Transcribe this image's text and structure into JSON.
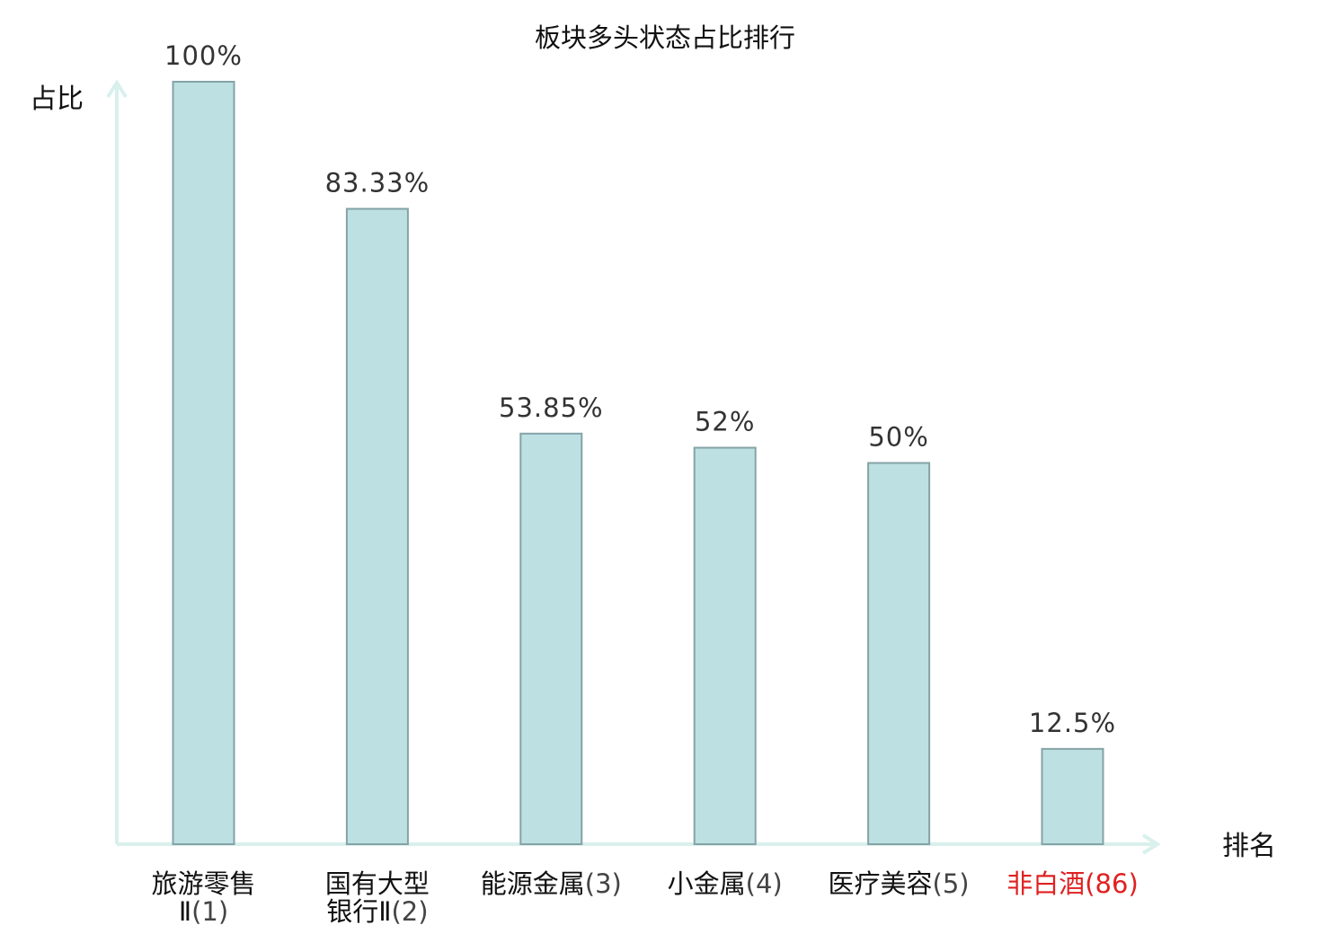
{
  "chart_data": {
    "type": "bar",
    "title": "板块多头状态占比排行",
    "ylabel": "占比",
    "xlabel": "排名",
    "ylim": [
      0,
      100
    ],
    "grid": false,
    "categories": [
      {
        "name_lines": [
          "旅游零售",
          "Ⅱ"
        ],
        "rank": "(1)",
        "highlight": false
      },
      {
        "name_lines": [
          "国有大型",
          "银行Ⅱ"
        ],
        "rank": "(2)",
        "highlight": false
      },
      {
        "name_lines": [
          "能源金属"
        ],
        "rank": "(3)",
        "highlight": false
      },
      {
        "name_lines": [
          "小金属"
        ],
        "rank": "(4)",
        "highlight": false
      },
      {
        "name_lines": [
          "医疗美容"
        ],
        "rank": "(5)",
        "highlight": false
      },
      {
        "name_lines": [
          "非白酒"
        ],
        "rank": "(86)",
        "highlight": true
      }
    ],
    "values": [
      100,
      83.33,
      53.85,
      52,
      50,
      12.5
    ],
    "value_labels": [
      "100%",
      "83.33%",
      "53.85%",
      "52%",
      "50%",
      "12.5%"
    ]
  },
  "colors": {
    "bar_fill": "#bde0e3",
    "bar_stroke": "#85a3a6",
    "axis": "#d9f0ec",
    "highlight": "#e02020",
    "text": "#111111"
  }
}
